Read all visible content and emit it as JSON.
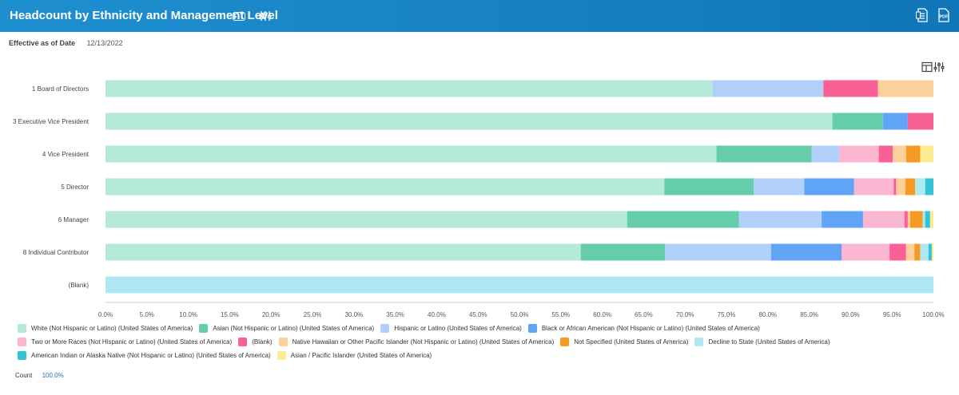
{
  "header": {
    "title": "Headcount by Ethnicity and Management Level",
    "more_icon": "more-icon",
    "filter_icon": "filter-icon",
    "excel_icon": "excel-export-icon",
    "pdf_icon": "pdf-export-icon",
    "pdf_label": "PDF",
    "colors": {
      "bg": "#1a86c8"
    }
  },
  "meta": {
    "label": "Effective as of Date",
    "value": "12/13/2022"
  },
  "toolbar": {
    "table_icon": "table-view-icon",
    "settings_icon": "chart-settings-icon"
  },
  "chart_data": {
    "type": "bar",
    "orientation": "horizontal",
    "stacked": true,
    "percent": true,
    "title": "Headcount by Ethnicity and Management Level",
    "categories": [
      "1 Board of Directors",
      "3 Executive Vice President",
      "4 Vice President",
      "5 Director",
      "6 Manager",
      "8 Individual Contributor",
      "(Blank)"
    ],
    "xlim": [
      0,
      100
    ],
    "xticks": [
      "0.0%",
      "5.0%",
      "10.0%",
      "15.0%",
      "20.0%",
      "25.0%",
      "30.0%",
      "35.0%",
      "40.0%",
      "45.0%",
      "50.0%",
      "55.0%",
      "60.0%",
      "65.0%",
      "70.0%",
      "75.0%",
      "80.0%",
      "85.0%",
      "90.0%",
      "95.0%",
      "100.0%"
    ],
    "series": [
      {
        "name": "White (Not Hispanic or Latino) (United States of America)",
        "color": "#b5eadb",
        "values": [
          73.3,
          87.8,
          73.8,
          67.5,
          63.0,
          57.4,
          0
        ]
      },
      {
        "name": "Asian (Not Hispanic or Latino) (United States of America)",
        "color": "#66cdaa",
        "values": [
          0,
          6.1,
          11.5,
          10.8,
          13.5,
          10.2,
          0
        ]
      },
      {
        "name": "Hispanic or Latino (United States of America)",
        "color": "#b0d0fb",
        "values": [
          13.4,
          0,
          3.3,
          6.1,
          10.0,
          12.8,
          0
        ]
      },
      {
        "name": "Black or African American (Not Hispanic or Latino) (United States of America)",
        "color": "#60a5f5",
        "values": [
          0,
          3.0,
          0,
          6.0,
          5.0,
          8.5,
          0
        ]
      },
      {
        "name": "Two or More Races (Not Hispanic or Latino) (United States of America)",
        "color": "#fbb6d1",
        "values": [
          0,
          0,
          4.8,
          4.8,
          5.0,
          5.8,
          0
        ]
      },
      {
        "name": "(Blank)",
        "color": "#f86096",
        "values": [
          6.6,
          3.1,
          1.7,
          0.3,
          0.4,
          2.0,
          0
        ]
      },
      {
        "name": "Native Hawaiian or Other Pacific Islander (Not Hispanic or Latino) (United States of America)",
        "color": "#fdd09b",
        "values": [
          6.7,
          0,
          1.6,
          1.1,
          0.3,
          1.0,
          0
        ]
      },
      {
        "name": "Not Specified (United States of America)",
        "color": "#f79a24",
        "values": [
          0,
          0,
          1.7,
          1.2,
          1.5,
          0.7,
          0
        ]
      },
      {
        "name": "Decline to State (United States of America)",
        "color": "#ade8f3",
        "values": [
          0,
          0,
          0,
          1.2,
          0.3,
          1.0,
          100.0
        ]
      },
      {
        "name": "American Indian or Alaska Native (Not Hispanic or Latino) (United States of America)",
        "color": "#33c2d6",
        "values": [
          0,
          0,
          0,
          1.0,
          0.6,
          0.4,
          0
        ]
      },
      {
        "name": "Asian / Pacific Islander (United States of America)",
        "color": "#fdeb93",
        "values": [
          0,
          0,
          1.6,
          0,
          0.4,
          0.2,
          0
        ]
      }
    ]
  },
  "footer": {
    "count_label": "Count",
    "count_value": "100.0%"
  }
}
